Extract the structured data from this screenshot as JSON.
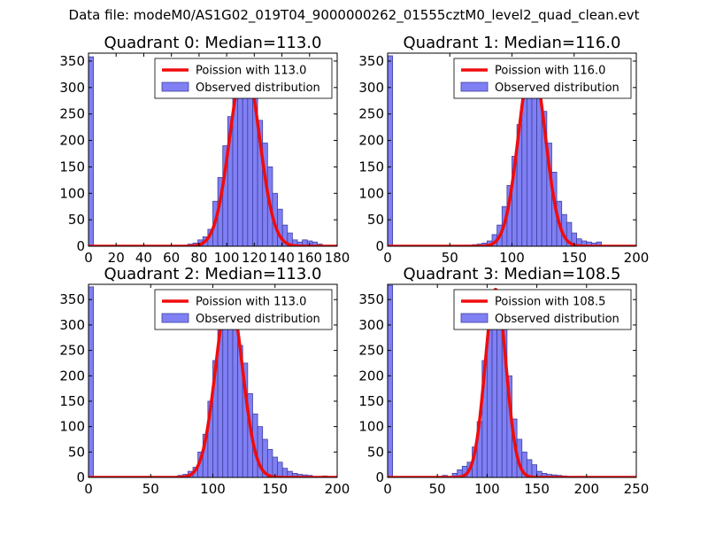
{
  "figure": {
    "suptitle": "Data file: modeM0/AS1G02_019T04_9000000262_01555cztM0_level2_quad_clean.evt"
  },
  "colors": {
    "hist_fill": "#8080f4",
    "hist_edge": "#3f3fa0",
    "poisson_line": "#f00c0c",
    "axes": "#000000",
    "background": "#ffffff"
  },
  "chart_data": [
    {
      "type": "bar",
      "title": "Quadrant 0: Median=113.0",
      "median": 113.0,
      "xlim": [
        0,
        180
      ],
      "ylim": [
        0,
        365
      ],
      "xticks": [
        0,
        20,
        40,
        60,
        80,
        100,
        120,
        140,
        160,
        180
      ],
      "yticks": [
        0,
        50,
        100,
        150,
        200,
        250,
        300,
        350
      ],
      "legend": {
        "location": "top-right",
        "line_label": "Poission with 113.0",
        "bar_label": "Observed distribution"
      },
      "bin_width": 3.6,
      "bins_x": [
        0,
        64.8,
        68.4,
        72.0,
        75.6,
        79.2,
        82.8,
        86.4,
        90.0,
        93.6,
        97.2,
        100.8,
        104.4,
        108.0,
        111.6,
        115.2,
        118.8,
        122.4,
        126.0,
        129.6,
        133.2,
        136.8,
        140.4,
        144.0,
        147.6,
        151.2,
        154.8,
        158.4,
        162.0,
        165.6
      ],
      "bins_count": [
        358,
        1,
        2,
        4,
        6,
        12,
        18,
        32,
        85,
        130,
        190,
        245,
        280,
        310,
        325,
        340,
        290,
        238,
        195,
        150,
        100,
        70,
        40,
        25,
        12,
        8,
        12,
        10,
        8,
        4
      ],
      "poisson_mean": 113.0,
      "poisson_peak": 345
    },
    {
      "type": "bar",
      "title": "Quadrant 1: Median=116.0",
      "median": 116.0,
      "xlim": [
        0,
        200
      ],
      "ylim": [
        0,
        365
      ],
      "xticks": [
        0,
        50,
        100,
        150,
        200
      ],
      "yticks": [
        0,
        50,
        100,
        150,
        200,
        250,
        300,
        350
      ],
      "legend": {
        "location": "top-right",
        "line_label": "Poission with 116.0",
        "bar_label": "Observed distribution"
      },
      "bin_width": 4.0,
      "bins_x": [
        0,
        60,
        64,
        68,
        72,
        76,
        80,
        84,
        88,
        92,
        96,
        100,
        104,
        108,
        112,
        116,
        120,
        124,
        128,
        132,
        136,
        140,
        144,
        148,
        152,
        156,
        160,
        164,
        168
      ],
      "bins_count": [
        360,
        2,
        2,
        3,
        4,
        6,
        10,
        22,
        40,
        75,
        115,
        170,
        230,
        300,
        340,
        350,
        310,
        255,
        195,
        140,
        85,
        60,
        45,
        25,
        14,
        10,
        8,
        6,
        8
      ],
      "poisson_mean": 116.0,
      "poisson_peak": 348
    },
    {
      "type": "bar",
      "title": "Quadrant 2: Median=113.0",
      "median": 113.0,
      "xlim": [
        0,
        200
      ],
      "ylim": [
        0,
        380
      ],
      "xticks": [
        0,
        50,
        100,
        150,
        200
      ],
      "yticks": [
        0,
        50,
        100,
        150,
        200,
        250,
        300,
        350
      ],
      "legend": {
        "location": "top-right",
        "line_label": "Poission with 113.0",
        "bar_label": "Observed distribution"
      },
      "bin_width": 4.0,
      "bins_x": [
        0,
        60,
        68,
        72,
        76,
        80,
        84,
        88,
        92,
        96,
        100,
        104,
        108,
        112,
        116,
        120,
        124,
        128,
        132,
        136,
        140,
        144,
        148,
        152,
        156,
        160,
        164,
        168,
        172,
        176,
        188
      ],
      "bins_count": [
        375,
        1,
        2,
        4,
        6,
        12,
        20,
        50,
        85,
        150,
        230,
        300,
        355,
        330,
        310,
        260,
        225,
        165,
        125,
        100,
        75,
        55,
        40,
        30,
        18,
        12,
        8,
        6,
        5,
        4,
        3
      ],
      "poisson_mean": 113.0,
      "poisson_peak": 362
    },
    {
      "type": "bar",
      "title": "Quadrant 3: Median=108.5",
      "median": 108.5,
      "xlim": [
        0,
        250
      ],
      "ylim": [
        0,
        380
      ],
      "xticks": [
        0,
        50,
        100,
        150,
        200,
        250
      ],
      "yticks": [
        0,
        50,
        100,
        150,
        200,
        250,
        300,
        350
      ],
      "legend": {
        "location": "top-right",
        "line_label": "Poission with 108.5",
        "bar_label": "Observed distribution"
      },
      "bin_width": 5.0,
      "bins_x": [
        0,
        25,
        55,
        65,
        70,
        75,
        80,
        85,
        90,
        95,
        100,
        105,
        110,
        115,
        120,
        125,
        130,
        135,
        140,
        145,
        150,
        155,
        160,
        165,
        170,
        175,
        180,
        185,
        200
      ],
      "bins_count": [
        378,
        2,
        4,
        8,
        15,
        22,
        30,
        60,
        110,
        230,
        320,
        365,
        340,
        300,
        200,
        115,
        75,
        50,
        35,
        25,
        12,
        8,
        6,
        5,
        4,
        3,
        2,
        2,
        2
      ],
      "poisson_mean": 108.5,
      "poisson_peak": 370
    }
  ]
}
